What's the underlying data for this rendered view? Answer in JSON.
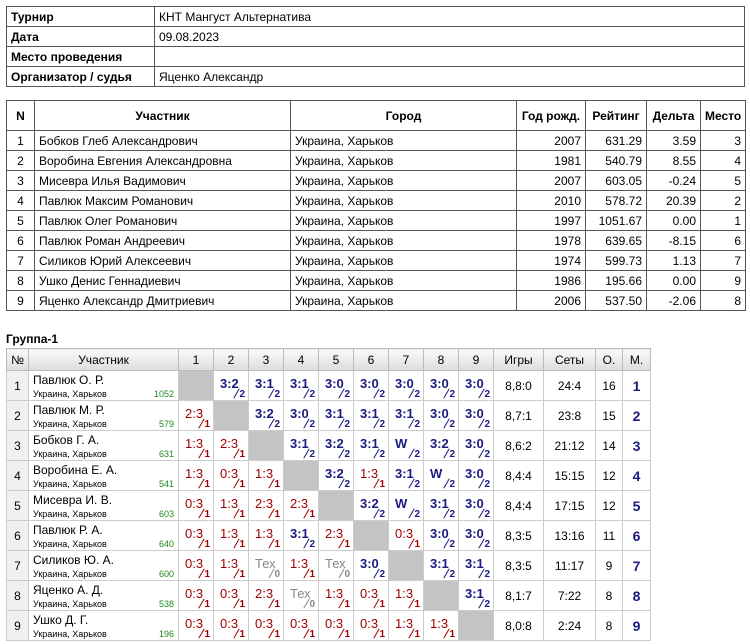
{
  "info": {
    "rows": [
      {
        "label": "Турнир",
        "value": "КНТ Мангуст Альтернатива"
      },
      {
        "label": "Дата",
        "value": "09.08.2023"
      },
      {
        "label": "Место проведения"
      },
      {
        "label": "Организатор / судья",
        "value": "Яценко Александр"
      }
    ]
  },
  "participants": {
    "header": [
      "N",
      "Участник",
      "Город",
      "Год рожд.",
      "Рейтинг",
      "Дельта",
      "Место"
    ],
    "rows": [
      [
        1,
        "Бобков Глеб Александрович",
        "Украина, Харьков",
        2007,
        "631.29",
        "3.59",
        3
      ],
      [
        2,
        "Воробина Евгения Александровна",
        "Украина, Харьков",
        1981,
        "540.79",
        "8.55",
        4
      ],
      [
        3,
        "Мисевра Илья Вадимович",
        "Украина, Харьков",
        2007,
        "603.05",
        "-0.24",
        5
      ],
      [
        4,
        "Павлюк Максим Романович",
        "Украина, Харьков",
        2010,
        "578.72",
        "20.39",
        2
      ],
      [
        5,
        "Павлюк Олег Романович",
        "Украина, Харьков",
        1997,
        "1051.67",
        "0.00",
        1
      ],
      [
        6,
        "Павлюк Роман Андреевич",
        "Украина, Харьков",
        1978,
        "639.65",
        "-8.15",
        6
      ],
      [
        7,
        "Силиков Юрий Алексеевич",
        "Украина, Харьков",
        1974,
        "599.73",
        "1.13",
        7
      ],
      [
        8,
        "Ушко Денис Геннадиевич",
        "Украина, Харьков",
        1986,
        "195.66",
        "0.00",
        9
      ],
      [
        9,
        "Яценко Александр Дмитриевич",
        "Украина, Харьков",
        2006,
        "537.50",
        "-2.06",
        8
      ]
    ]
  },
  "group": {
    "title": "Группа-1",
    "header": [
      "№",
      "Участник",
      1,
      2,
      3,
      4,
      5,
      6,
      7,
      8,
      9,
      "Игры",
      "Сеты",
      "О.",
      "М."
    ],
    "rows": [
      {
        "n": 1,
        "name": "Павлюк О. Р.",
        "city": "Украина, Харьков",
        "rating": 1052,
        "results": [
          null,
          {
            "score": "3:2",
            "points": 2
          },
          {
            "score": "3:1",
            "points": 2
          },
          {
            "score": "3:1",
            "points": 2
          },
          {
            "score": "3:0",
            "points": 2
          },
          {
            "score": "3:0",
            "points": 2
          },
          {
            "score": "3:0",
            "points": 2
          },
          {
            "score": "3:0",
            "points": 2
          },
          {
            "score": "3:0",
            "points": 2
          }
        ],
        "games": "8,8:0",
        "sets": "24:4",
        "points": 16,
        "place": 1
      },
      {
        "n": 2,
        "name": "Павлюк М. Р.",
        "city": "Украина, Харьков",
        "rating": 579,
        "results": [
          {
            "score": "2:3",
            "points": 1
          },
          null,
          {
            "score": "3:2",
            "points": 2
          },
          {
            "score": "3:0",
            "points": 2
          },
          {
            "score": "3:1",
            "points": 2
          },
          {
            "score": "3:1",
            "points": 2
          },
          {
            "score": "3:1",
            "points": 2
          },
          {
            "score": "3:0",
            "points": 2
          },
          {
            "score": "3:0",
            "points": 2
          }
        ],
        "games": "8,7:1",
        "sets": "23:8",
        "points": 15,
        "place": 2
      },
      {
        "n": 3,
        "name": "Бобков Г. А.",
        "city": "Украина, Харьков",
        "rating": 631,
        "results": [
          {
            "score": "1:3",
            "points": 1
          },
          {
            "score": "2:3",
            "points": 1
          },
          null,
          {
            "score": "3:1",
            "points": 2
          },
          {
            "score": "3:2",
            "points": 2
          },
          {
            "score": "3:1",
            "points": 2
          },
          {
            "score": "W",
            "points": 2
          },
          {
            "score": "3:2",
            "points": 2
          },
          {
            "score": "3:0",
            "points": 2
          }
        ],
        "games": "8,6:2",
        "sets": "21:12",
        "points": 14,
        "place": 3
      },
      {
        "n": 4,
        "name": "Воробина Е. А.",
        "city": "Украина, Харьков",
        "rating": 541,
        "results": [
          {
            "score": "1:3",
            "points": 1
          },
          {
            "score": "0:3",
            "points": 1
          },
          {
            "score": "1:3",
            "points": 1
          },
          null,
          {
            "score": "3:2",
            "points": 2
          },
          {
            "score": "1:3",
            "points": 1
          },
          {
            "score": "3:1",
            "points": 2
          },
          {
            "score": "W",
            "points": 2
          },
          {
            "score": "3:0",
            "points": 2
          }
        ],
        "games": "8,4:4",
        "sets": "15:15",
        "points": 12,
        "place": 4
      },
      {
        "n": 5,
        "name": "Мисевра И. В.",
        "city": "Украина, Харьков",
        "rating": 603,
        "results": [
          {
            "score": "0:3",
            "points": 1
          },
          {
            "score": "1:3",
            "points": 1
          },
          {
            "score": "2:3",
            "points": 1
          },
          {
            "score": "2:3",
            "points": 1
          },
          null,
          {
            "score": "3:2",
            "points": 2
          },
          {
            "score": "W",
            "points": 2
          },
          {
            "score": "3:1",
            "points": 2
          },
          {
            "score": "3:0",
            "points": 2
          }
        ],
        "games": "8,4:4",
        "sets": "17:15",
        "points": 12,
        "place": 5
      },
      {
        "n": 6,
        "name": "Павлюк Р. А.",
        "city": "Украина, Харьков",
        "rating": 640,
        "results": [
          {
            "score": "0:3",
            "points": 1
          },
          {
            "score": "1:3",
            "points": 1
          },
          {
            "score": "1:3",
            "points": 1
          },
          {
            "score": "3:1",
            "points": 2
          },
          {
            "score": "2:3",
            "points": 1
          },
          null,
          {
            "score": "0:3",
            "points": 1
          },
          {
            "score": "3:0",
            "points": 2
          },
          {
            "score": "3:0",
            "points": 2
          }
        ],
        "games": "8,3:5",
        "sets": "13:16",
        "points": 11,
        "place": 6
      },
      {
        "n": 7,
        "name": "Силиков Ю. А.",
        "city": "Украина, Харьков",
        "rating": 600,
        "results": [
          {
            "score": "0:3",
            "points": 1
          },
          {
            "score": "1:3",
            "points": 1
          },
          {
            "score": "Тех",
            "points": 0
          },
          {
            "score": "1:3",
            "points": 1
          },
          {
            "score": "Тех",
            "points": 0
          },
          {
            "score": "3:0",
            "points": 2
          },
          null,
          {
            "score": "3:1",
            "points": 2
          },
          {
            "score": "3:1",
            "points": 2
          }
        ],
        "games": "8,3:5",
        "sets": "11:17",
        "points": 9,
        "place": 7
      },
      {
        "n": 8,
        "name": "Яценко А. Д.",
        "city": "Украина, Харьков",
        "rating": 538,
        "results": [
          {
            "score": "0:3",
            "points": 1
          },
          {
            "score": "0:3",
            "points": 1
          },
          {
            "score": "2:3",
            "points": 1
          },
          {
            "score": "Тех",
            "points": 0
          },
          {
            "score": "1:3",
            "points": 1
          },
          {
            "score": "0:3",
            "points": 1
          },
          {
            "score": "1:3",
            "points": 1
          },
          null,
          {
            "score": "3:1",
            "points": 2
          }
        ],
        "games": "8,1:7",
        "sets": "7:22",
        "points": 8,
        "place": 8
      },
      {
        "n": 9,
        "name": "Ушко Д. Г.",
        "city": "Украина, Харьков",
        "rating": 196,
        "results": [
          {
            "score": "0:3",
            "points": 1
          },
          {
            "score": "0:3",
            "points": 1
          },
          {
            "score": "0:3",
            "points": 1
          },
          {
            "score": "0:3",
            "points": 1
          },
          {
            "score": "0:3",
            "points": 1
          },
          {
            "score": "0:3",
            "points": 1
          },
          {
            "score": "1:3",
            "points": 1
          },
          {
            "score": "1:3",
            "points": 1
          },
          null
        ],
        "games": "8,0:8",
        "sets": "2:24",
        "points": 8,
        "place": 9
      }
    ]
  }
}
